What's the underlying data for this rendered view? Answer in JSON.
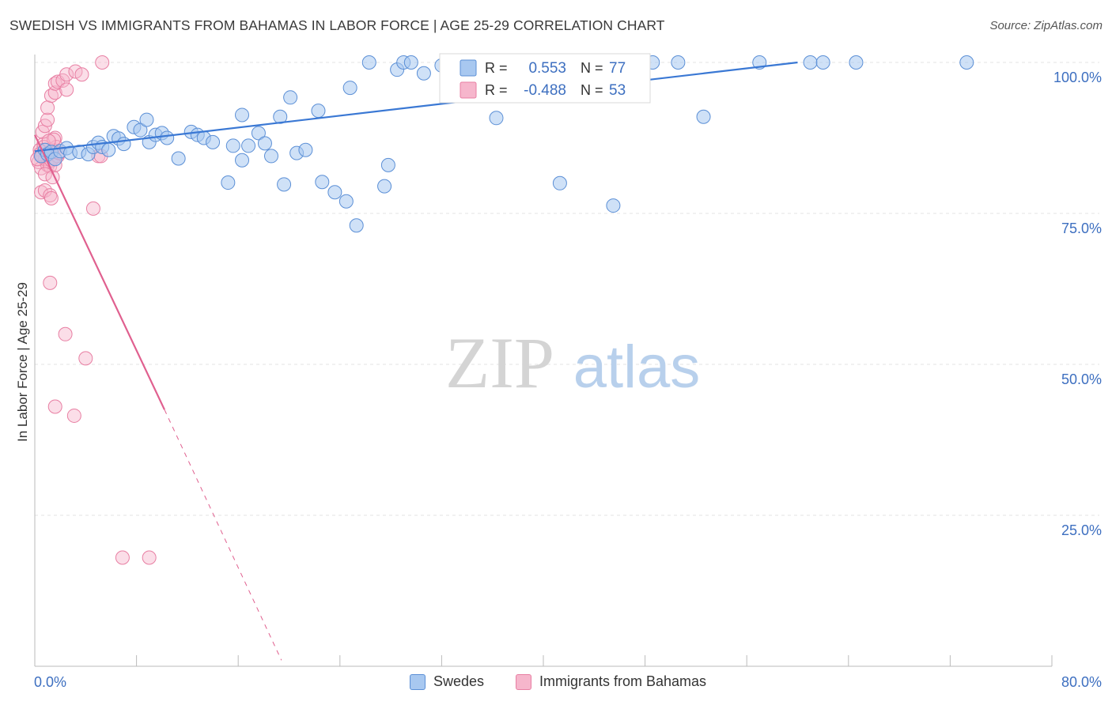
{
  "header": {
    "title": "SWEDISH VS IMMIGRANTS FROM BAHAMAS IN LABOR FORCE | AGE 25-29 CORRELATION CHART",
    "source": "Source: ZipAtlas.com"
  },
  "watermark": {
    "zip": "ZIP",
    "atlas": "atlas"
  },
  "colors": {
    "blue_fill": "#a8c8f0",
    "blue_stroke": "#5b8fd6",
    "blue_line": "#3a78d4",
    "pink_fill": "#f6b6cc",
    "pink_stroke": "#e87fa3",
    "pink_line": "#e0608f",
    "axis_text": "#3d6fc0",
    "grid": "#e3e3e3"
  },
  "legend_box": {
    "rows": [
      {
        "r_label": "R =",
        "r_value": "0.553",
        "n_label": "N =",
        "n_value": "77"
      },
      {
        "r_label": "R =",
        "r_value": "-0.488",
        "n_label": "N =",
        "n_value": "53"
      }
    ]
  },
  "chart_data": {
    "type": "scatter",
    "title": "SWEDISH VS IMMIGRANTS FROM BAHAMAS IN LABOR FORCE | AGE 25-29 CORRELATION CHART",
    "xlabel": "",
    "ylabel": "In Labor Force | Age 25-29",
    "xlim": [
      0,
      80
    ],
    "ylim": [
      0,
      100
    ],
    "x_tick_labels": [
      "0.0%",
      "80.0%"
    ],
    "y_tick_labels": [
      "25.0%",
      "50.0%",
      "75.0%",
      "100.0%"
    ],
    "y_ticks": [
      25,
      50,
      75,
      100
    ],
    "grid": true,
    "legend_position": "top-center",
    "series": [
      {
        "name": "Swedes",
        "r": 0.553,
        "n": 77,
        "trend": {
          "x1": 0,
          "y1": 85.3,
          "x2": 60,
          "y2": 100
        },
        "points": [
          [
            0.5,
            84.5
          ],
          [
            0.8,
            85.5
          ],
          [
            1.0,
            84.8
          ],
          [
            1.3,
            85.2
          ],
          [
            1.6,
            84.0
          ],
          [
            2.0,
            85.3
          ],
          [
            2.5,
            85.8
          ],
          [
            2.8,
            85.0
          ],
          [
            3.5,
            85.2
          ],
          [
            4.2,
            84.8
          ],
          [
            4.6,
            86.0
          ],
          [
            5.0,
            86.7
          ],
          [
            5.3,
            86.0
          ],
          [
            5.8,
            85.5
          ],
          [
            6.2,
            87.8
          ],
          [
            6.6,
            87.4
          ],
          [
            7.0,
            86.5
          ],
          [
            7.8,
            89.3
          ],
          [
            8.3,
            88.8
          ],
          [
            8.8,
            90.5
          ],
          [
            9.0,
            86.8
          ],
          [
            9.5,
            88.0
          ],
          [
            10.0,
            88.3
          ],
          [
            10.4,
            87.5
          ],
          [
            11.3,
            84.1
          ],
          [
            12.3,
            88.5
          ],
          [
            12.8,
            88.0
          ],
          [
            13.3,
            87.5
          ],
          [
            14.0,
            86.8
          ],
          [
            15.2,
            80.1
          ],
          [
            15.6,
            86.2
          ],
          [
            16.3,
            91.3
          ],
          [
            16.3,
            83.8
          ],
          [
            16.8,
            86.2
          ],
          [
            17.6,
            88.3
          ],
          [
            18.1,
            86.6
          ],
          [
            18.6,
            84.5
          ],
          [
            19.3,
            91.0
          ],
          [
            19.6,
            79.8
          ],
          [
            20.1,
            94.2
          ],
          [
            20.6,
            85.0
          ],
          [
            21.3,
            85.5
          ],
          [
            22.3,
            92.0
          ],
          [
            22.6,
            80.2
          ],
          [
            23.6,
            78.5
          ],
          [
            24.5,
            77.0
          ],
          [
            24.8,
            95.8
          ],
          [
            25.3,
            73.0
          ],
          [
            26.3,
            100
          ],
          [
            27.5,
            79.5
          ],
          [
            27.8,
            83.0
          ],
          [
            28.5,
            98.8
          ],
          [
            29.0,
            100
          ],
          [
            29.6,
            100
          ],
          [
            30.6,
            98.2
          ],
          [
            32.0,
            99.5
          ],
          [
            33.0,
            100
          ],
          [
            34.3,
            100
          ],
          [
            35.6,
            100
          ],
          [
            36.3,
            100
          ],
          [
            37.5,
            100
          ],
          [
            38.6,
            100
          ],
          [
            39.3,
            100
          ],
          [
            40.1,
            100
          ],
          [
            40.6,
            99.5
          ],
          [
            41.3,
            100
          ],
          [
            44.0,
            100
          ],
          [
            48.6,
            100
          ],
          [
            50.6,
            100
          ],
          [
            57.0,
            100
          ],
          [
            61.0,
            100
          ],
          [
            62.0,
            100
          ],
          [
            64.6,
            100
          ],
          [
            73.3,
            100
          ],
          [
            36.3,
            90.8
          ],
          [
            41.3,
            80.0
          ],
          [
            45.5,
            76.3
          ],
          [
            52.6,
            91.0
          ]
        ]
      },
      {
        "name": "Immigrants from Bahamas",
        "r": -0.488,
        "n": 53,
        "trend_solid": {
          "x1": 0,
          "y1": 88.0,
          "x2": 10.2,
          "y2": 42.5
        },
        "trend_dashed": {
          "x1": 10.2,
          "y1": 42.5,
          "x2": 19.4,
          "y2": 1.0
        },
        "points": [
          [
            0.3,
            83.5
          ],
          [
            0.4,
            85.5
          ],
          [
            0.5,
            82.5
          ],
          [
            0.6,
            84.5
          ],
          [
            0.7,
            86.5
          ],
          [
            0.8,
            84.0
          ],
          [
            0.9,
            85.5
          ],
          [
            1.0,
            83.0
          ],
          [
            1.1,
            84.8
          ],
          [
            1.2,
            82.8
          ],
          [
            1.3,
            83.8
          ],
          [
            1.4,
            85.5
          ],
          [
            1.5,
            84.2
          ],
          [
            1.6,
            87.5
          ],
          [
            1.7,
            86.0
          ],
          [
            1.8,
            84.5
          ],
          [
            0.5,
            78.5
          ],
          [
            0.8,
            78.8
          ],
          [
            1.2,
            78.0
          ],
          [
            1.3,
            77.5
          ],
          [
            0.8,
            81.5
          ],
          [
            1.4,
            81.0
          ],
          [
            1.5,
            87.2
          ],
          [
            1.6,
            83.0
          ],
          [
            0.6,
            88.5
          ],
          [
            0.8,
            89.5
          ],
          [
            1.0,
            90.5
          ],
          [
            1.0,
            92.5
          ],
          [
            1.3,
            94.5
          ],
          [
            1.6,
            95.0
          ],
          [
            1.6,
            96.5
          ],
          [
            1.8,
            96.8
          ],
          [
            2.2,
            97.0
          ],
          [
            2.5,
            95.5
          ],
          [
            2.5,
            98.0
          ],
          [
            3.2,
            98.5
          ],
          [
            3.7,
            98.0
          ],
          [
            5.3,
            100
          ],
          [
            5.0,
            84.5
          ],
          [
            5.2,
            84.5
          ],
          [
            4.6,
            75.8
          ],
          [
            1.2,
            63.5
          ],
          [
            2.4,
            55.0
          ],
          [
            4.0,
            51.0
          ],
          [
            1.6,
            43.0
          ],
          [
            3.1,
            41.5
          ],
          [
            6.9,
            18.0
          ],
          [
            9.0,
            18.0
          ],
          [
            0.4,
            84.8
          ],
          [
            0.7,
            86.0
          ],
          [
            1.1,
            87.0
          ],
          [
            1.9,
            85.0
          ],
          [
            0.2,
            84.0
          ]
        ]
      }
    ]
  }
}
